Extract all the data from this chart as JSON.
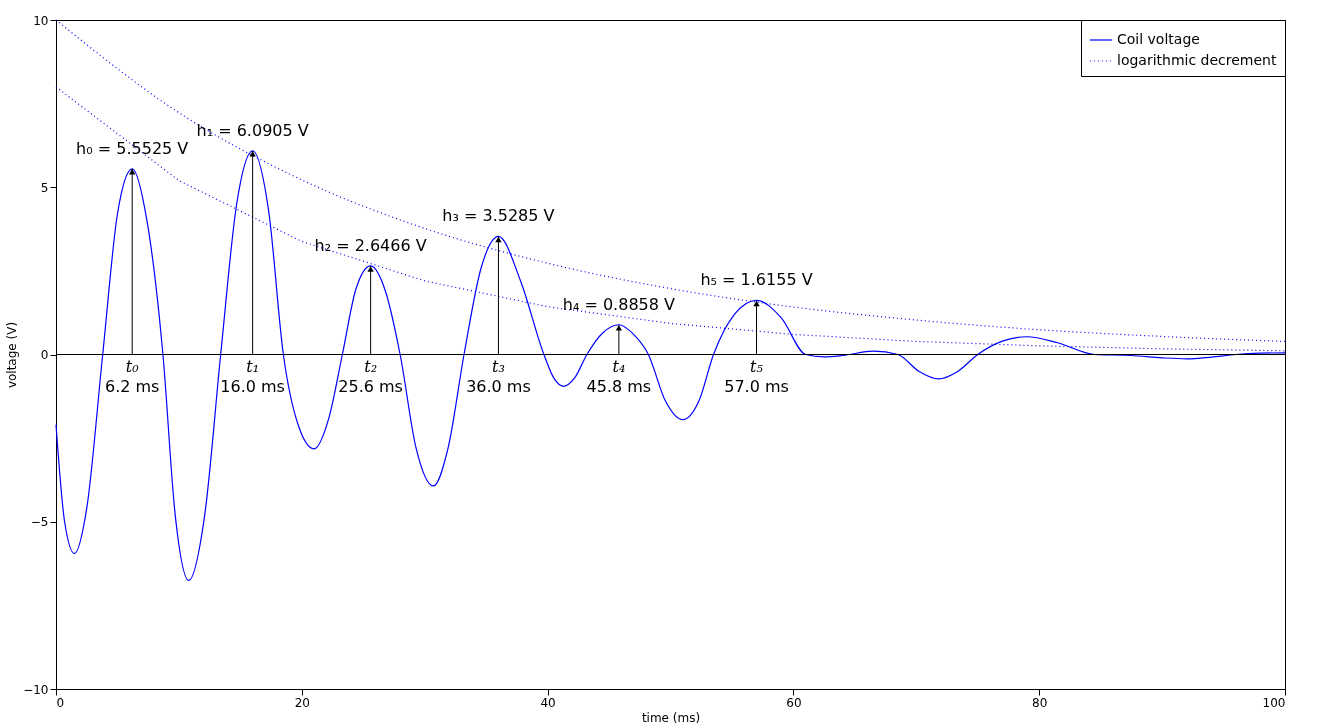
{
  "chart_data": {
    "type": "line",
    "xlabel": "time (ms)",
    "ylabel": "voltage (V)",
    "xlim": [
      0,
      100
    ],
    "xticks": [
      0,
      20,
      40,
      60,
      80,
      100
    ],
    "ylim": [
      -10,
      10
    ],
    "yticks": [
      {
        "value": -10,
        "label": "−10"
      },
      {
        "value": -5,
        "label": "−5"
      },
      0,
      5,
      10
    ],
    "grid": false,
    "legend": "top right",
    "series": [
      {
        "name": "Coil voltage",
        "color": "#0000ff",
        "line_style": "solid",
        "x": [
          0,
          0.7,
          1.5,
          2.5,
          3.8,
          5,
          6.2,
          7.4,
          8.7,
          9.7,
          10.8,
          12.1,
          13.4,
          14.7,
          16.0,
          17.3,
          18.5,
          19.7,
          21,
          22.2,
          23.3,
          24.4,
          25.6,
          26.8,
          28,
          29.3,
          30.7,
          31.9,
          33.2,
          34.6,
          36,
          37.8,
          39.7,
          40.5,
          41.3,
          42.2,
          43.2,
          44.5,
          45.8,
          47,
          48.2,
          49.6,
          51,
          52.3,
          53.5,
          55.2,
          57,
          59,
          61,
          62.5,
          64,
          66.5,
          68.5,
          70.2,
          71.8,
          73.4,
          75,
          77,
          79,
          81.5,
          84.5,
          87.5,
          90,
          92,
          94,
          96,
          98,
          100
        ],
        "values": [
          -2.1,
          -5.0,
          -5.95,
          -4.6,
          0,
          4.2,
          5.55,
          4.0,
          0,
          -4.8,
          -6.75,
          -4.8,
          0,
          4.5,
          6.09,
          4.3,
          0,
          -2.1,
          -2.82,
          -1.9,
          0,
          1.95,
          2.65,
          1.9,
          0,
          -2.8,
          -3.93,
          -2.8,
          0,
          2.6,
          3.53,
          2.2,
          0,
          -0.7,
          -0.95,
          -0.7,
          0,
          0.65,
          0.89,
          0.6,
          0,
          -1.4,
          -1.95,
          -1.4,
          0,
          1.2,
          1.62,
          1.1,
          0,
          -0.07,
          -0.03,
          0.1,
          0,
          -0.5,
          -0.73,
          -0.5,
          0,
          0.4,
          0.53,
          0.35,
          0,
          -0.03,
          -0.1,
          -0.13,
          -0.08,
          0,
          0.04,
          0.05
        ]
      },
      {
        "name": "logarithmic decrement",
        "color": "#0000ff",
        "line_style": "dotted",
        "x": [
          0,
          10,
          20,
          30,
          40,
          50,
          60,
          70,
          80,
          90,
          100
        ],
        "values": [
          10,
          7.23,
          5.22,
          3.77,
          2.73,
          1.97,
          1.42,
          1.03,
          0.74,
          0.54,
          0.39
        ]
      },
      {
        "color": "#0000ff",
        "line_style": "dotted",
        "x": [
          0,
          10,
          20,
          30,
          40,
          50,
          60,
          70,
          80,
          90,
          100
        ],
        "values": [
          8,
          5.2,
          3.38,
          2.2,
          1.43,
          0.93,
          0.6,
          0.39,
          0.26,
          0.17,
          0.11
        ]
      }
    ],
    "ref_lines": [
      {
        "axis": "y",
        "value": 0,
        "color": "#000000",
        "line_style": "solid"
      }
    ],
    "annotations": [
      {
        "text": "h₀ = 5.5525 V",
        "x": 6.2,
        "y": 5.5525
      },
      {
        "text": "t₀",
        "x": 6.2,
        "y": 0
      },
      {
        "text": "6.2 ms",
        "x": 6.2,
        "y": 0
      },
      {
        "text": "h₁ = 6.0905 V",
        "x": 16.0,
        "y": 6.0905
      },
      {
        "text": "t₁",
        "x": 16.0,
        "y": 0
      },
      {
        "text": "16.0 ms",
        "x": 16.0,
        "y": 0
      },
      {
        "text": "h₂ = 2.6466 V",
        "x": 25.6,
        "y": 2.6466
      },
      {
        "text": "t₂",
        "x": 25.6,
        "y": 0
      },
      {
        "text": "25.6 ms",
        "x": 25.6,
        "y": 0
      },
      {
        "text": "h₃ = 3.5285 V",
        "x": 36.0,
        "y": 3.5285
      },
      {
        "text": "t₃",
        "x": 36.0,
        "y": 0
      },
      {
        "text": "36.0 ms",
        "x": 36.0,
        "y": 0
      },
      {
        "text": "h₄ = 0.8858 V",
        "x": 45.8,
        "y": 0.8858
      },
      {
        "text": "t₄",
        "x": 45.8,
        "y": 0
      },
      {
        "text": "45.8 ms",
        "x": 45.8,
        "y": 0
      },
      {
        "text": "h₅ = 1.6155 V",
        "x": 57.0,
        "y": 1.6155
      },
      {
        "text": "t₅",
        "x": 57.0,
        "y": 0
      },
      {
        "text": "57.0 ms",
        "x": 57.0,
        "y": 0
      }
    ]
  }
}
